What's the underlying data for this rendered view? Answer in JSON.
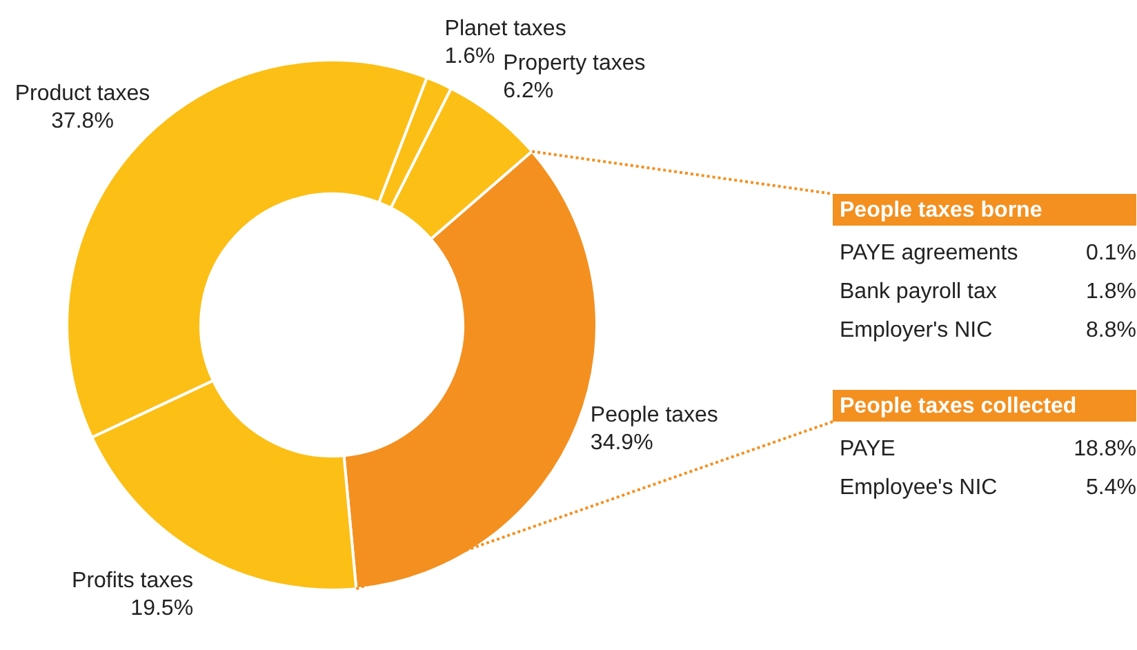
{
  "chart_data": [
    {
      "type": "donut",
      "categories": [
        "Planet taxes",
        "Property taxes",
        "People taxes",
        "Profits taxes",
        "Product taxes"
      ],
      "values": [
        1.6,
        6.2,
        34.9,
        19.5,
        37.8
      ],
      "value_labels": [
        "1.6%",
        "6.2%",
        "34.9%",
        "19.5%",
        "37.8%"
      ],
      "colors": [
        "#fbbf16",
        "#fbbf16",
        "#f39020",
        "#fbbf16",
        "#fbbf16"
      ]
    },
    {
      "type": "other",
      "title": "People taxes borne",
      "categories": [
        "PAYE agreements",
        "Bank payroll tax",
        "Employer's NIC"
      ],
      "value_labels": [
        "0.1%",
        "1.8%",
        "8.8%"
      ],
      "color": "#f39020"
    },
    {
      "type": "other",
      "title": "People taxes collected",
      "categories": [
        "PAYE",
        "Employee's NIC"
      ],
      "value_labels": [
        "18.8%",
        "5.4%"
      ],
      "color": "#f39020"
    }
  ]
}
